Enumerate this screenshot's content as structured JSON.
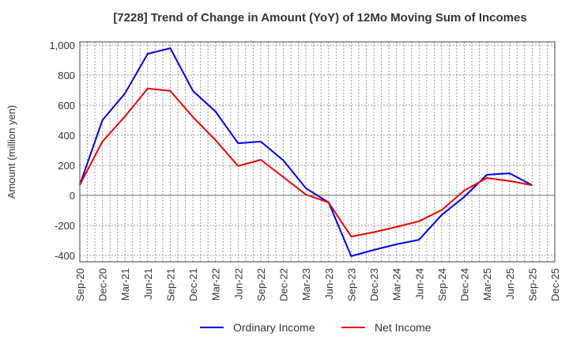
{
  "chart_data": {
    "type": "line",
    "title": "[7228]  Trend of Change in Amount (YoY) of 12Mo Moving Sum of Incomes",
    "xlabel": "",
    "ylabel": "Amount (million yen)",
    "ylim": [
      -440,
      1020
    ],
    "yticks": [
      -400,
      -200,
      0,
      200,
      400,
      600,
      800,
      1000
    ],
    "ytick_labels": [
      "-400",
      "-200",
      "0",
      "200",
      "400",
      "600",
      "800",
      "1,000"
    ],
    "categories": [
      "Sep-20",
      "Dec-20",
      "Mar-21",
      "Jun-21",
      "Sep-21",
      "Dec-21",
      "Mar-22",
      "Jun-22",
      "Sep-22",
      "Dec-22",
      "Mar-23",
      "Jun-23",
      "Sep-23",
      "Dec-23",
      "Mar-24",
      "Jun-24",
      "Sep-24",
      "Dec-24",
      "Mar-25",
      "Jun-25",
      "Sep-25",
      "Dec-25"
    ],
    "grid": true,
    "legend_position": "bottom-center",
    "series": [
      {
        "name": "Ordinary Income",
        "color": "#0000ee",
        "values": [
          70,
          500,
          679,
          942,
          979,
          695,
          558,
          347,
          358,
          232,
          47,
          -47,
          -405,
          -363,
          -326,
          -295,
          -130,
          -10,
          137,
          147,
          68,
          null
        ]
      },
      {
        "name": "Net Income",
        "color": "#ee0000",
        "values": [
          70,
          358,
          526,
          711,
          695,
          521,
          368,
          195,
          237,
          121,
          5,
          -47,
          -274,
          -245,
          -210,
          -172,
          -98,
          32,
          116,
          95,
          68,
          null
        ]
      }
    ]
  }
}
